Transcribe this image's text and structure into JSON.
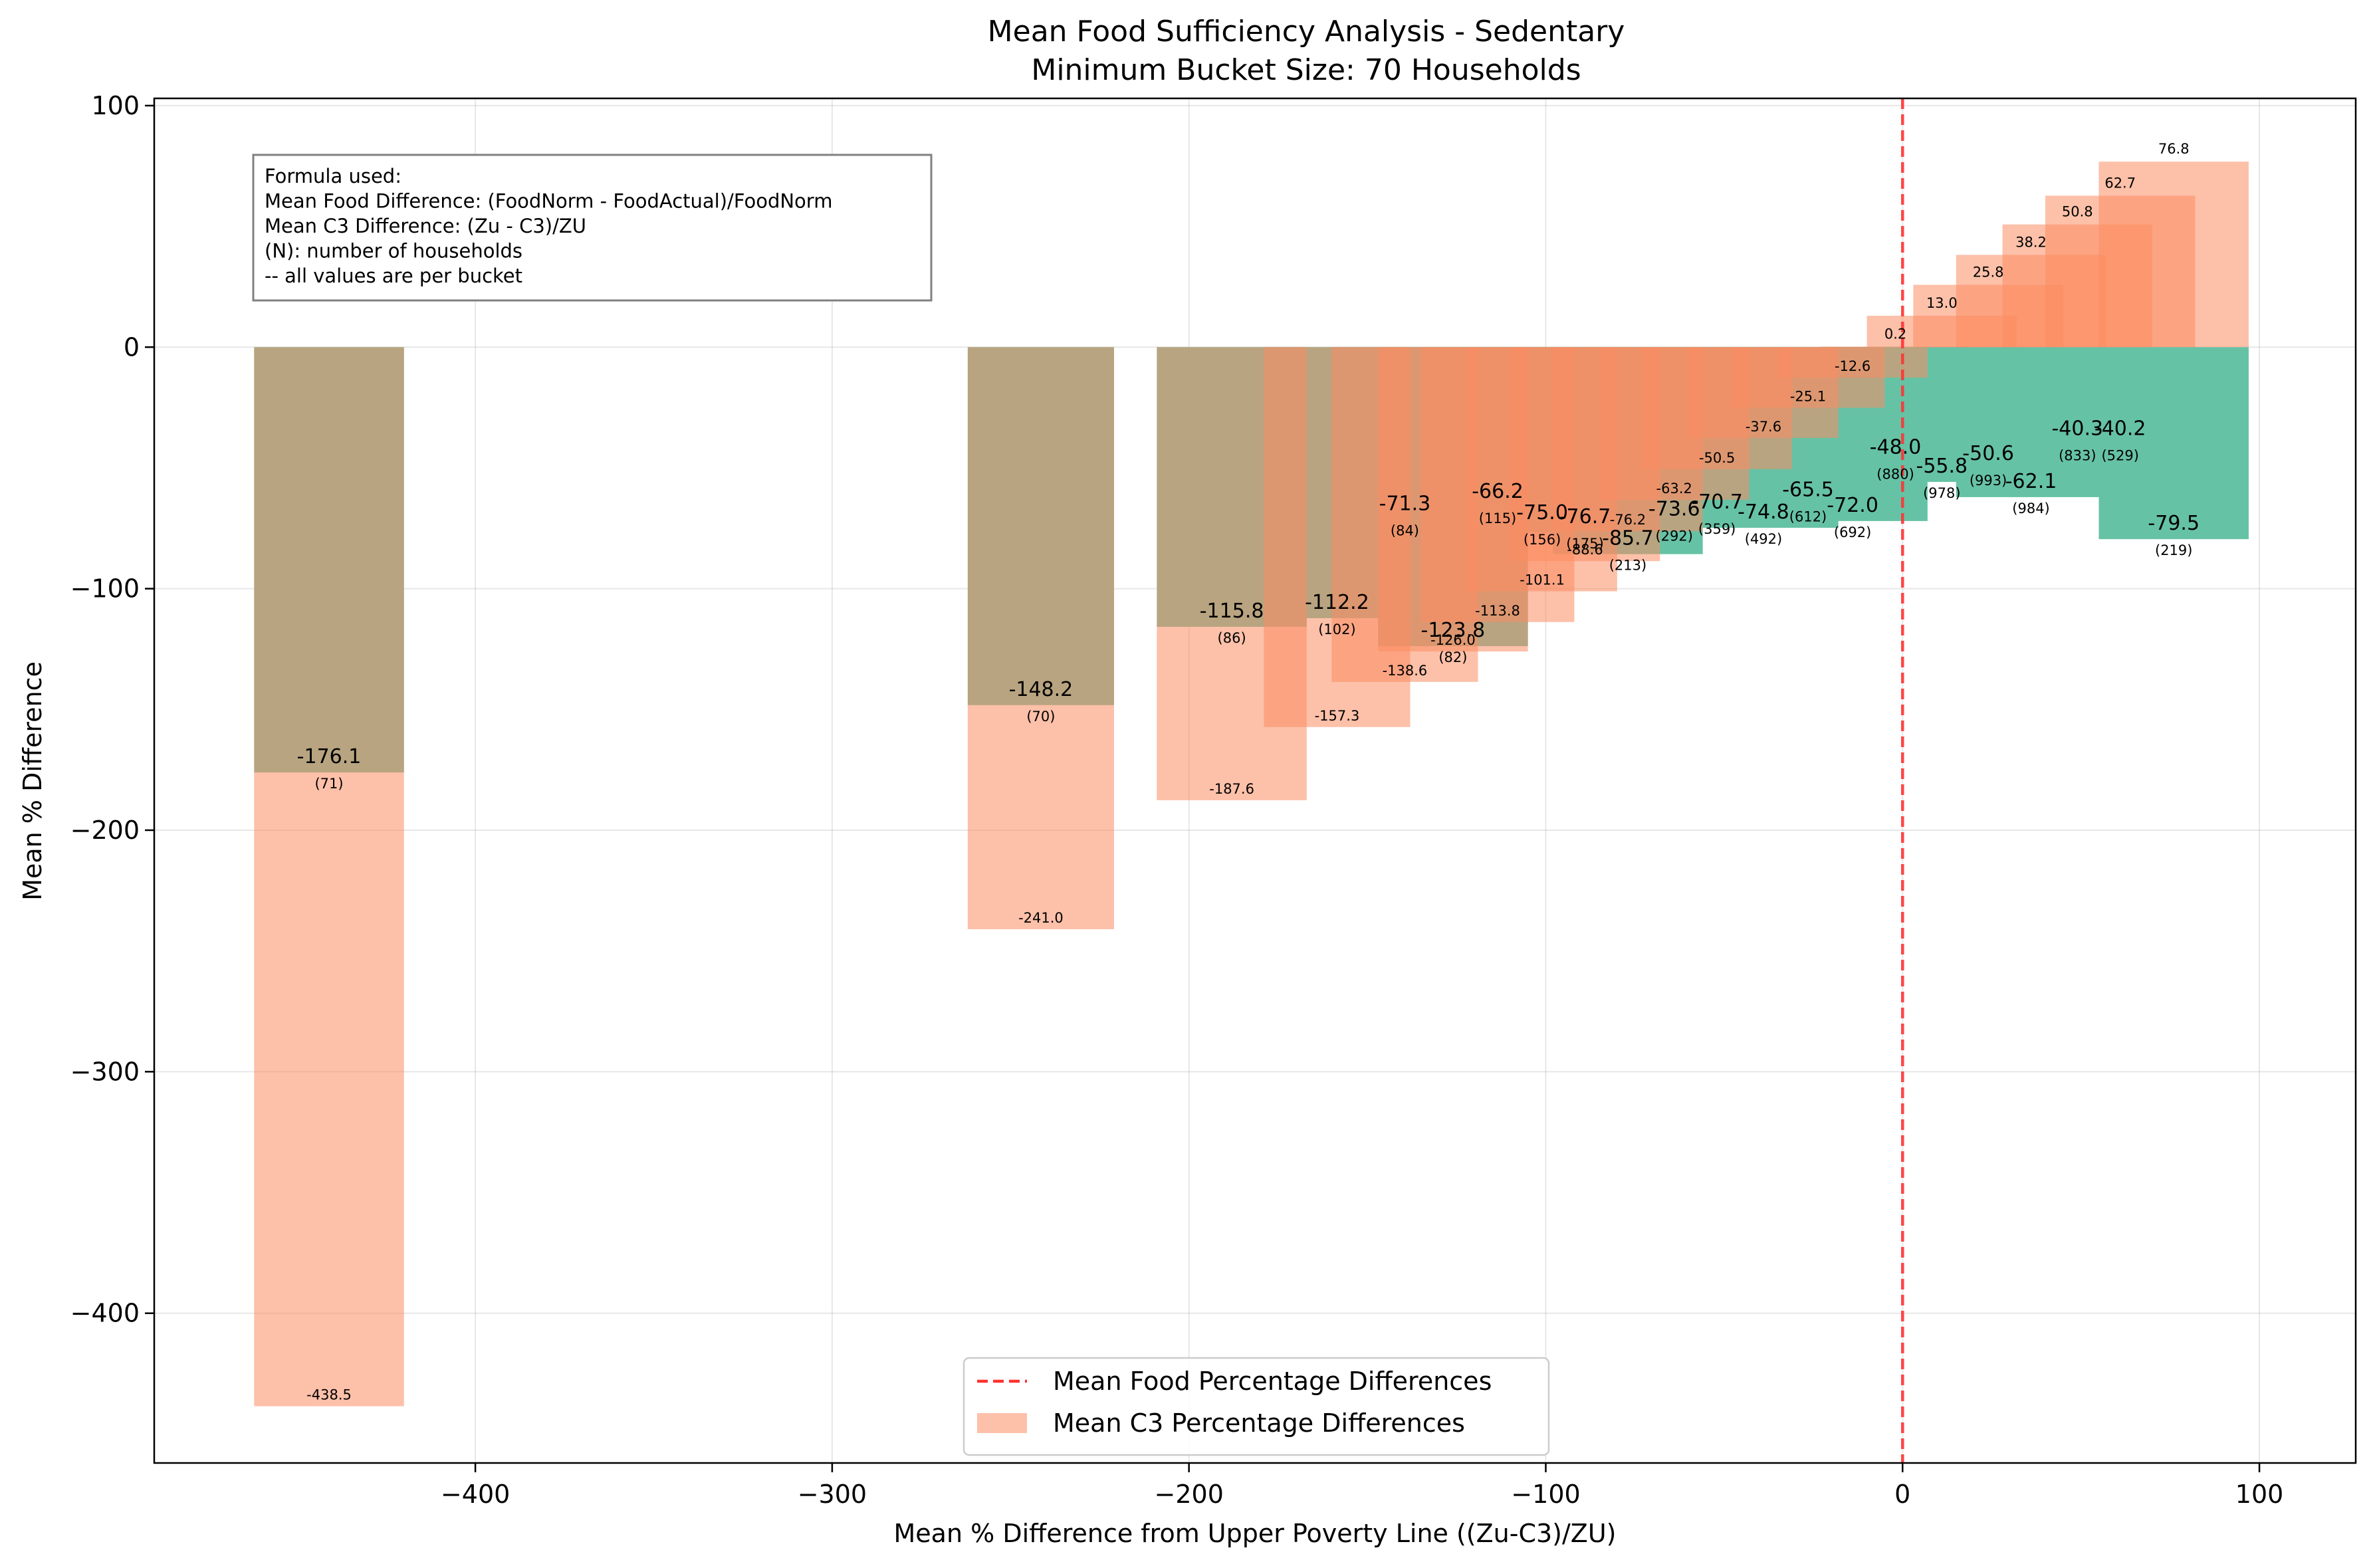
{
  "chart_data": {
    "type": "bar",
    "title": "Mean Food Sufficiency Analysis - Sedentary",
    "subtitle": "Minimum Bucket Size: 70 Households",
    "xlabel": "Mean % Difference from Upper Poverty Line ((Zu-C3)/ZU)",
    "ylabel": "Mean % Difference",
    "xlim": [
      -490,
      127
    ],
    "ylim": [
      -462,
      103
    ],
    "xticks": [
      -400,
      -300,
      -200,
      -100,
      0,
      100
    ],
    "xtick_labels": [
      "−400",
      "−300",
      "−200",
      "−100",
      "0",
      "100"
    ],
    "yticks": [
      100,
      0,
      -100,
      -200,
      -300,
      -400
    ],
    "ytick_labels": [
      "100",
      "0",
      "−100",
      "−200",
      "−300",
      "−400"
    ],
    "grid": true,
    "legend_position": "bottom-center",
    "legend": [
      {
        "label": "Mean Food Percentage Differences",
        "style": "dashed-line",
        "color": "#ff3333"
      },
      {
        "label": "Mean C3 Percentage Differences",
        "style": "patch",
        "color": "#fc8d62"
      }
    ],
    "annotation_lines": [
      "Formula used:",
      "Mean Food Difference: (FoodNorm - FoodActual)/FoodNorm",
      "Mean C3 Difference: (Zu - C3)/ZU",
      "(N): number of households",
      "-- all values are per bucket"
    ],
    "reference_line_x": 0,
    "colors": {
      "food": "#66c2a5",
      "c3": "#fc8d62",
      "reference": "#ff3333"
    },
    "buckets": [
      {
        "x0": -462.0,
        "x1": -420.0,
        "food": -176.1,
        "c3": -438.5,
        "n": "71"
      },
      {
        "x0": -262.0,
        "x1": -221.0,
        "food": -148.2,
        "c3": -241.0,
        "n": "70"
      },
      {
        "x0": -209.0,
        "x1": -167.0,
        "food": -115.8,
        "c3": -187.6,
        "n": "86"
      },
      {
        "x0": -179.0,
        "x1": -138.0,
        "food": -112.2,
        "c3": -157.3,
        "n": "102"
      },
      {
        "x0": -160.0,
        "x1": -119.0,
        "food": -71.3,
        "c3": -138.6,
        "n": "84"
      },
      {
        "x0": -147.0,
        "x1": -105.0,
        "food": -123.8,
        "c3": -126.0,
        "n": "82"
      },
      {
        "x0": -135.0,
        "x1": -92.0,
        "food": -66.2,
        "c3": -113.8,
        "n": "115"
      },
      {
        "x0": -122.0,
        "x1": -80.0,
        "food": -75.0,
        "c3": -101.1,
        "n": "156"
      },
      {
        "x0": -110.0,
        "x1": -68.0,
        "food": -76.7,
        "c3": -88.6,
        "n": "175"
      },
      {
        "x0": -98.0,
        "x1": -56.0,
        "food": -85.7,
        "c3": -76.2,
        "n": "213"
      },
      {
        "x0": -85.0,
        "x1": -43.0,
        "food": -73.6,
        "c3": -63.2,
        "n": "292"
      },
      {
        "x0": -73.0,
        "x1": -31.0,
        "food": -70.7,
        "c3": -50.5,
        "n": "359"
      },
      {
        "x0": -60.0,
        "x1": -18.0,
        "food": -74.8,
        "c3": -37.6,
        "n": "492"
      },
      {
        "x0": -48.0,
        "x1": -5.0,
        "food": -65.5,
        "c3": -25.1,
        "n": "612"
      },
      {
        "x0": -35.0,
        "x1": 7.0,
        "food": -72.0,
        "c3": -12.6,
        "n": "692"
      },
      {
        "x0": -23.0,
        "x1": 19.0,
        "food": -48.0,
        "c3": 0.2,
        "n": "880"
      },
      {
        "x0": -10.0,
        "x1": 32.0,
        "food": -55.8,
        "c3": 13.0,
        "n": "978"
      },
      {
        "x0": 3.0,
        "x1": 45.0,
        "food": -50.6,
        "c3": 25.8,
        "n": "993"
      },
      {
        "x0": 15.0,
        "x1": 57.0,
        "food": -62.1,
        "c3": 38.2,
        "n": "984"
      },
      {
        "x0": 28.0,
        "x1": 70.0,
        "food": -40.3,
        "c3": 50.8,
        "n": "833"
      },
      {
        "x0": 40.0,
        "x1": 82.0,
        "food": -40.2,
        "c3": 62.7,
        "n": "529"
      },
      {
        "x0": 55.0,
        "x1": 97.0,
        "food": -79.5,
        "c3": 76.8,
        "n": "219"
      }
    ]
  }
}
